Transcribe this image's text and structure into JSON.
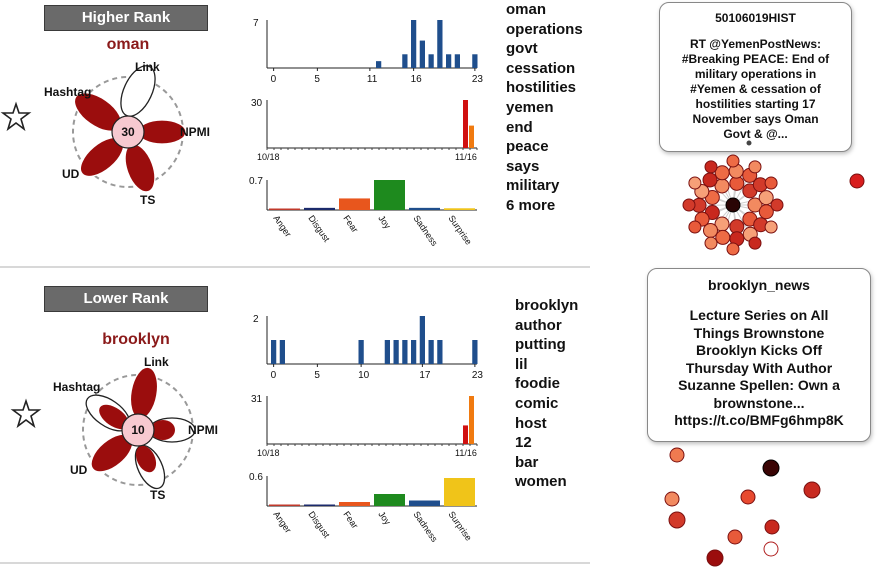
{
  "panels": [
    {
      "rank_label": "Higher Rank",
      "keyword": "oman",
      "score": "30",
      "flower_labels": {
        "link": "Link",
        "hashtag": "Hashtag",
        "npmi": "NPMI",
        "ud": "UD",
        "ts": "TS"
      },
      "words": [
        "oman",
        "operations",
        "govt",
        "cessation",
        "hostilities",
        "yemen",
        "end",
        "peace",
        "says",
        "military",
        "6 more"
      ],
      "hour_chart": {
        "ymax_label": "7",
        "ticks": [
          "0",
          "5",
          "11",
          "16",
          "23"
        ],
        "values": [
          0,
          0,
          0,
          0,
          0,
          0,
          0,
          0,
          0,
          0,
          0,
          0,
          1,
          0,
          0,
          2,
          7,
          4,
          2,
          7,
          2,
          2,
          0,
          2
        ]
      },
      "day_chart": {
        "ymax_label": "30",
        "start_label": "10/18",
        "end_label": "11/16",
        "last_values": [
          30,
          14
        ]
      },
      "emotion_chart": {
        "ymax_label": "0.7",
        "labels": [
          "Anger",
          "Disgust",
          "Fear",
          "Joy",
          "Sadness",
          "Surprise"
        ],
        "values": [
          0.03,
          0.05,
          0.27,
          0.7,
          0.05,
          0.04
        ],
        "colors": [
          "#c0392b",
          "#1b2a6b",
          "#e8561d",
          "#1e8a1e",
          "#1f4e8c",
          "#f0c419"
        ]
      }
    },
    {
      "rank_label": "Lower Rank",
      "keyword": "brooklyn",
      "score": "10",
      "flower_labels": {
        "link": "Link",
        "hashtag": "Hashtag",
        "npmi": "NPMI",
        "ud": "UD",
        "ts": "TS"
      },
      "words": [
        "brooklyn",
        "author",
        "putting",
        "lil",
        "foodie",
        "comic",
        "host",
        "12",
        "bar",
        "women"
      ],
      "hour_chart": {
        "ymax_label": "2",
        "ticks": [
          "0",
          "5",
          "10",
          "17",
          "23"
        ],
        "values": [
          1,
          1,
          0,
          0,
          0,
          0,
          0,
          0,
          0,
          0,
          1,
          0,
          0,
          1,
          1,
          1,
          1,
          2,
          1,
          1,
          0,
          0,
          0,
          1
        ]
      },
      "day_chart": {
        "ymax_label": "31",
        "start_label": "10/18",
        "end_label": "11/16",
        "last_values": [
          12,
          31
        ]
      },
      "emotion_chart": {
        "ymax_label": "0.6",
        "labels": [
          "Anger",
          "Disgust",
          "Fear",
          "Joy",
          "Sadness",
          "Surprise"
        ],
        "values": [
          0.03,
          0.03,
          0.08,
          0.24,
          0.11,
          0.56
        ],
        "colors": [
          "#c0392b",
          "#1b2a6b",
          "#e8561d",
          "#1e8a1e",
          "#1f4e8c",
          "#f0c419"
        ]
      }
    }
  ],
  "tooltips": [
    {
      "user": "50106019HIST",
      "lines": [
        "RT @YemenPostNews:",
        "#Breaking PEACE: End of",
        "military operations in",
        "#Yemen & cessation of",
        "hostilities starting 17",
        "November says Oman",
        "Govt & @..."
      ]
    },
    {
      "user": "brooklyn_news",
      "lines": [
        "Lecture Series on All",
        "Things Brownstone",
        "Brooklyn Kicks Off",
        "Thursday With Author",
        "Suzanne Spellen: Own a",
        "brownstone...",
        "https://t.co/BMFg6hmp8K"
      ]
    }
  ],
  "icons": [
    "star-icon"
  ]
}
